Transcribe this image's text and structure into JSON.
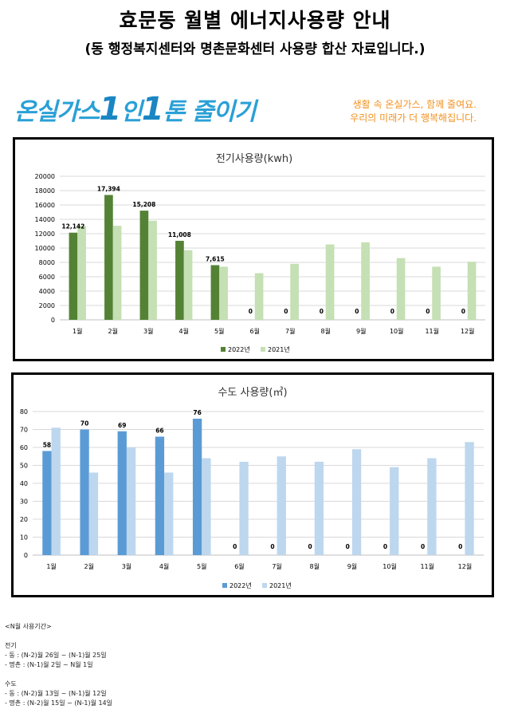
{
  "header": {
    "title": "효문동 월별 에너지사용량 안내",
    "subtitle": "(동 행정복지센터와 명촌문화센터 사용량 합산 자료입니다.)"
  },
  "banner": {
    "slogan_part1": "온실가스",
    "slogan_num1": "1",
    "slogan_part2": "인",
    "slogan_num2": "1",
    "slogan_part3": "톤 줄이기",
    "tagline_line1": "생활 속 온실가스, 함께 줄여요.",
    "tagline_line2": "우리의 미래가 더 행복해집니다."
  },
  "chart_data": [
    {
      "type": "bar",
      "title": "전기사용량(kwh)",
      "categories": [
        "1월",
        "2월",
        "3월",
        "4월",
        "5월",
        "6월",
        "7월",
        "8월",
        "9월",
        "10월",
        "11월",
        "12월"
      ],
      "series": [
        {
          "name": "2022년",
          "values": [
            12142,
            17394,
            15208,
            11008,
            7615,
            0,
            0,
            0,
            0,
            0,
            0,
            0
          ],
          "color": "#548235"
        },
        {
          "name": "2021년",
          "values": [
            13100,
            13100,
            13800,
            9700,
            7400,
            6500,
            7800,
            10500,
            10800,
            8600,
            7400,
            8100
          ],
          "color": "#c5e0b4"
        }
      ],
      "data_labels": [
        "12,142",
        "17,394",
        "15,208",
        "11,008",
        "7,615",
        "0",
        "0",
        "0",
        "0",
        "0",
        "0",
        "0"
      ],
      "ylim": [
        0,
        20000
      ],
      "yticks": [
        "0",
        "2000",
        "4000",
        "6000",
        "8000",
        "10000",
        "12000",
        "14000",
        "16000",
        "18000",
        "20000"
      ],
      "grid": true,
      "legend": "bottom"
    },
    {
      "type": "bar",
      "title": "수도 사용량(㎥)",
      "categories": [
        "1월",
        "2월",
        "3월",
        "4월",
        "5월",
        "6월",
        "7월",
        "8월",
        "9월",
        "10월",
        "11월",
        "12월"
      ],
      "series": [
        {
          "name": "2022년",
          "values": [
            58,
            70,
            69,
            66,
            76,
            0,
            0,
            0,
            0,
            0,
            0,
            0
          ],
          "color": "#5b9bd5"
        },
        {
          "name": "2021년",
          "values": [
            71,
            46,
            60,
            46,
            54,
            52,
            55,
            52,
            59,
            49,
            54,
            63
          ],
          "color": "#bdd7ee"
        }
      ],
      "data_labels": [
        "58",
        "70",
        "69",
        "66",
        "76",
        "0",
        "0",
        "0",
        "0",
        "0",
        "0",
        "0"
      ],
      "ylim": [
        0,
        80
      ],
      "yticks": [
        "0",
        "10",
        "20",
        "30",
        "40",
        "50",
        "60",
        "70",
        "80"
      ],
      "grid": true,
      "legend": "bottom"
    }
  ],
  "notes": {
    "period_title": "<N월 사용기간>",
    "elec_title": "전기",
    "elec_line1": "- 동 : (N-2)월 26일 ~ (N-1)월 25일",
    "elec_line2": "- 명촌 : (N-1)월 2일 ~ N월 1일",
    "water_title": "수도",
    "water_line1": "- 동 : (N-2)월 13일 ~ (N-1)월 12일",
    "water_line2": "- 명촌 : (N-2)월 15일 ~ (N-1)월 14일"
  }
}
